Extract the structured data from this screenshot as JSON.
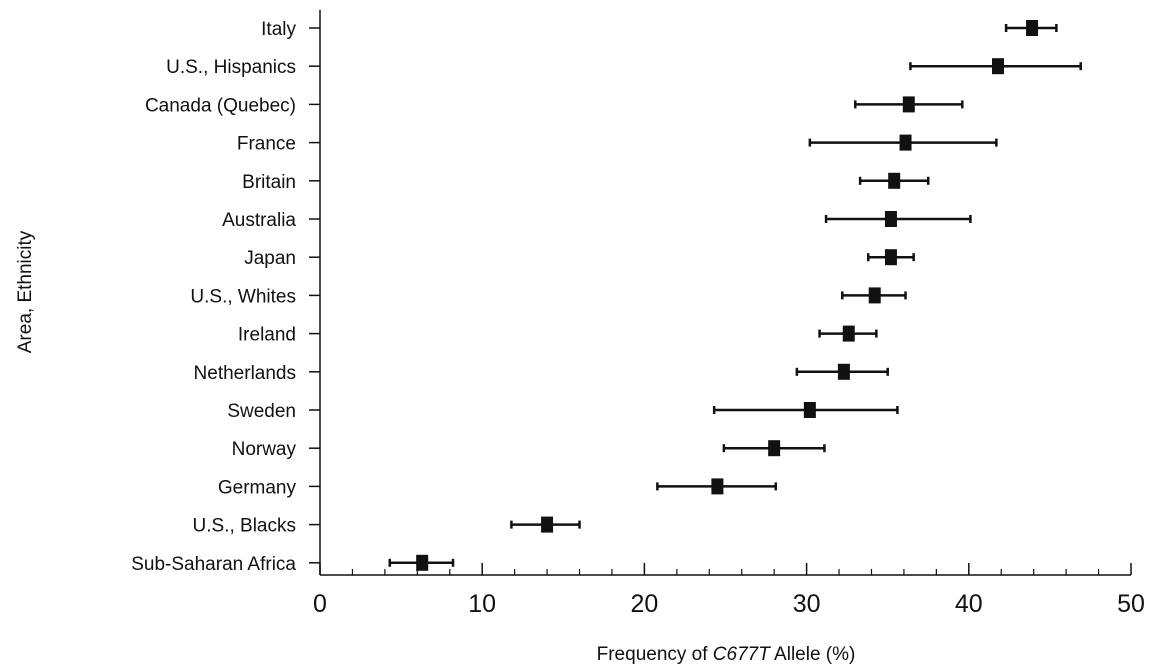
{
  "chart_data": {
    "type": "scatter",
    "style": "forest-plot with horizontal error bars and square markers",
    "xlabel": {
      "before": "Frequency of ",
      "italic": "C677T",
      "after": " Allele (%)"
    },
    "ylabel": "Area, Ethnicity",
    "xlim": [
      0,
      50
    ],
    "x_ticks": [
      "0",
      "10",
      "20",
      "30",
      "40",
      "50"
    ],
    "x_tick_values": [
      0,
      10,
      20,
      30,
      40,
      50
    ],
    "x_minor_step": 2,
    "grid": false,
    "categories": [
      "Italy",
      "U.S., Hispanics",
      "Canada (Quebec)",
      "France",
      "Britain",
      "Australia",
      "Japan",
      "U.S., Whites",
      "Ireland",
      "Netherlands",
      "Sweden",
      "Norway",
      "Germany",
      "U.S., Blacks",
      "Sub-Saharan Africa"
    ],
    "points": [
      {
        "label": "Italy",
        "x": 43.9,
        "low": 42.3,
        "high": 45.4
      },
      {
        "label": "U.S., Hispanics",
        "x": 41.8,
        "low": 36.4,
        "high": 46.9
      },
      {
        "label": "Canada (Quebec)",
        "x": 36.3,
        "low": 33.0,
        "high": 39.6
      },
      {
        "label": "France",
        "x": 36.1,
        "low": 30.2,
        "high": 41.7
      },
      {
        "label": "Britain",
        "x": 35.4,
        "low": 33.3,
        "high": 37.5
      },
      {
        "label": "Australia",
        "x": 35.2,
        "low": 31.2,
        "high": 40.1
      },
      {
        "label": "Japan",
        "x": 35.2,
        "low": 33.8,
        "high": 36.6
      },
      {
        "label": "U.S., Whites",
        "x": 34.2,
        "low": 32.2,
        "high": 36.1
      },
      {
        "label": "Ireland",
        "x": 32.6,
        "low": 30.8,
        "high": 34.3
      },
      {
        "label": "Netherlands",
        "x": 32.3,
        "low": 29.4,
        "high": 35.0
      },
      {
        "label": "Sweden",
        "x": 30.2,
        "low": 24.3,
        "high": 35.6
      },
      {
        "label": "Norway",
        "x": 28.0,
        "low": 24.9,
        "high": 31.1
      },
      {
        "label": "Germany",
        "x": 24.5,
        "low": 20.8,
        "high": 28.1
      },
      {
        "label": "U.S., Blacks",
        "x": 14.0,
        "low": 11.8,
        "high": 16.0
      },
      {
        "label": "Sub-Saharan Africa",
        "x": 6.3,
        "low": 4.3,
        "high": 8.2
      }
    ],
    "colors": {
      "marker": "#111111",
      "axis": "#111111",
      "background": "#ffffff"
    }
  }
}
